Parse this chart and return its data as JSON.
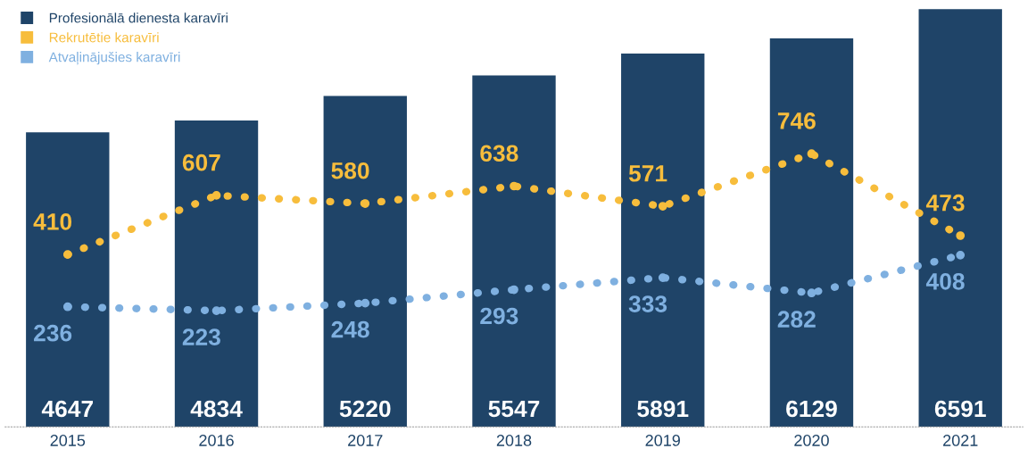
{
  "chart_data": {
    "type": "bar",
    "categories": [
      "2015",
      "2016",
      "2017",
      "2018",
      "2019",
      "2020",
      "2021"
    ],
    "series": [
      {
        "name": "Profesionālā dienesta karavīri",
        "color": "#1f4468",
        "values": [
          4647,
          4834,
          5220,
          5547,
          5891,
          6129,
          6591
        ]
      },
      {
        "name": "Rekrutētie karavīri",
        "type": "line",
        "axis": "y2",
        "color": "#f7bd3c",
        "values": [
          410,
          607,
          580,
          638,
          571,
          746,
          473
        ]
      },
      {
        "name": "Atvaļinājušies karavīri",
        "type": "line",
        "axis": "y2",
        "color": "#7fb0e0",
        "values": [
          236,
          223,
          248,
          293,
          333,
          282,
          408
        ]
      }
    ],
    "data_labels": true,
    "legend": "top left",
    "tick_labels": "x",
    "marker": "circle",
    "line_style": "dotted",
    "grid": false
  }
}
